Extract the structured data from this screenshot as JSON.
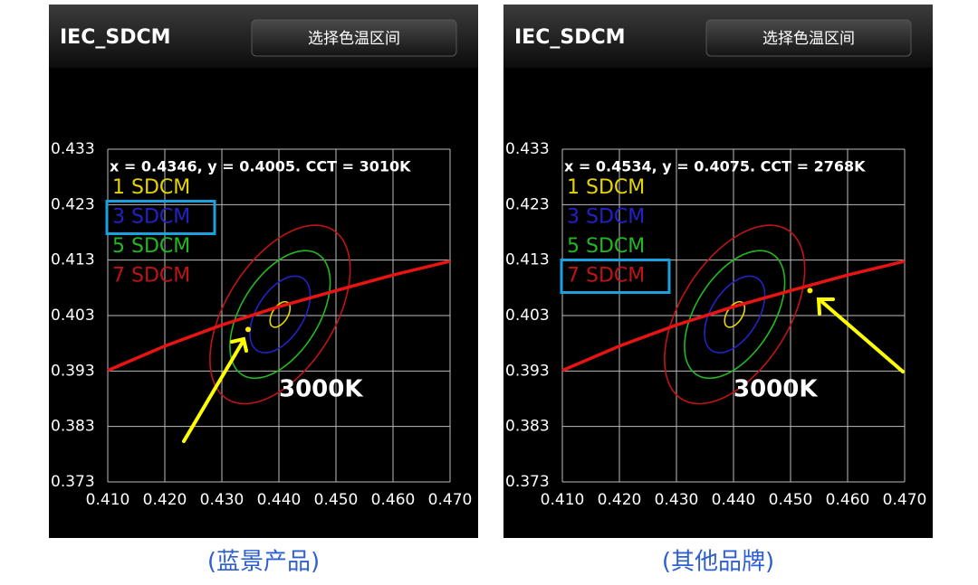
{
  "chart_data": [
    {
      "type": "chromaticity",
      "app_title": "IEC_SDCM",
      "button": "选择色温区间",
      "readout": "x = 0.4346, y = 0.4005. CCT = 3010K",
      "point": {
        "x": 0.4346,
        "y": 0.4005,
        "color": "#ffee00"
      },
      "cct_label": "3000K",
      "xlim": [
        0.41,
        0.47
      ],
      "xticks": [
        {
          "value": 0.41,
          "label": "0.410"
        },
        {
          "value": 0.42,
          "label": "0.420"
        },
        {
          "value": 0.43,
          "label": "0.430"
        },
        {
          "value": 0.44,
          "label": "0.440"
        },
        {
          "value": 0.45,
          "label": "0.450"
        },
        {
          "value": 0.46,
          "label": "0.460"
        },
        {
          "value": 0.47,
          "label": "0.470"
        }
      ],
      "ylim": [
        0.373,
        0.433
      ],
      "yticks": [
        0.373,
        0.383,
        0.393,
        0.403,
        0.413,
        0.423,
        0.433
      ],
      "grid": true,
      "locus": {
        "color": "#e81414",
        "x": [
          0.41,
          0.42,
          0.43,
          0.44,
          0.45,
          0.46,
          0.47
        ],
        "y": [
          0.3931,
          0.3975,
          0.4013,
          0.4046,
          0.4075,
          0.4103,
          0.4128
        ]
      },
      "series": [
        {
          "name": "1 SDCM",
          "color": "#e6d400",
          "cx": 0.4402,
          "cy": 0.4032,
          "a": 0.0025,
          "b": 0.00136,
          "angle": 58
        },
        {
          "name": "3 SDCM",
          "color": "#2222c8",
          "cx": 0.4402,
          "cy": 0.4032,
          "a": 0.0075,
          "b": 0.0041,
          "angle": 58
        },
        {
          "name": "5 SDCM",
          "color": "#22b822",
          "cx": 0.4402,
          "cy": 0.4032,
          "a": 0.0125,
          "b": 0.0068,
          "angle": 58
        },
        {
          "name": "7 SDCM",
          "color": "#c01414",
          "cx": 0.4402,
          "cy": 0.4032,
          "a": 0.0175,
          "b": 0.0095,
          "angle": 58
        }
      ],
      "highlight": 1,
      "caption": "(蓝景产品)"
    },
    {
      "type": "chromaticity",
      "app_title": "IEC_SDCM",
      "button": "选择色温区间",
      "readout": "x = 0.4534, y = 0.4075. CCT = 2768K",
      "point": {
        "x": 0.4534,
        "y": 0.4075,
        "color": "#ffee00"
      },
      "cct_label": "3000K",
      "xlim": [
        0.41,
        0.47
      ],
      "xticks": [
        {
          "value": 0.41,
          "label": "0.410"
        },
        {
          "value": 0.42,
          "label": "0.420"
        },
        {
          "value": 0.43,
          "label": "0.430"
        },
        {
          "value": 0.44,
          "label": "0.440"
        },
        {
          "value": 0.45,
          "label": "0.450"
        },
        {
          "value": 0.46,
          "label": "0.460"
        },
        {
          "value": 0.47,
          "label": "0.470"
        }
      ],
      "ylim": [
        0.373,
        0.433
      ],
      "yticks": [
        0.373,
        0.383,
        0.393,
        0.403,
        0.413,
        0.423,
        0.433
      ],
      "grid": true,
      "locus": {
        "color": "#e81414",
        "x": [
          0.41,
          0.42,
          0.43,
          0.44,
          0.45,
          0.46,
          0.47
        ],
        "y": [
          0.3931,
          0.3975,
          0.4013,
          0.4046,
          0.4075,
          0.4103,
          0.4128
        ]
      },
      "series": [
        {
          "name": "1 SDCM",
          "color": "#e6d400",
          "cx": 0.4402,
          "cy": 0.4032,
          "a": 0.0025,
          "b": 0.00136,
          "angle": 58
        },
        {
          "name": "3 SDCM",
          "color": "#2222c8",
          "cx": 0.4402,
          "cy": 0.4032,
          "a": 0.0075,
          "b": 0.0041,
          "angle": 58
        },
        {
          "name": "5 SDCM",
          "color": "#22b822",
          "cx": 0.4402,
          "cy": 0.4032,
          "a": 0.0125,
          "b": 0.0068,
          "angle": 58
        },
        {
          "name": "7 SDCM",
          "color": "#c01414",
          "cx": 0.4402,
          "cy": 0.4032,
          "a": 0.0175,
          "b": 0.0095,
          "angle": 58
        }
      ],
      "highlight": 3,
      "caption": "(其他品牌)"
    }
  ]
}
